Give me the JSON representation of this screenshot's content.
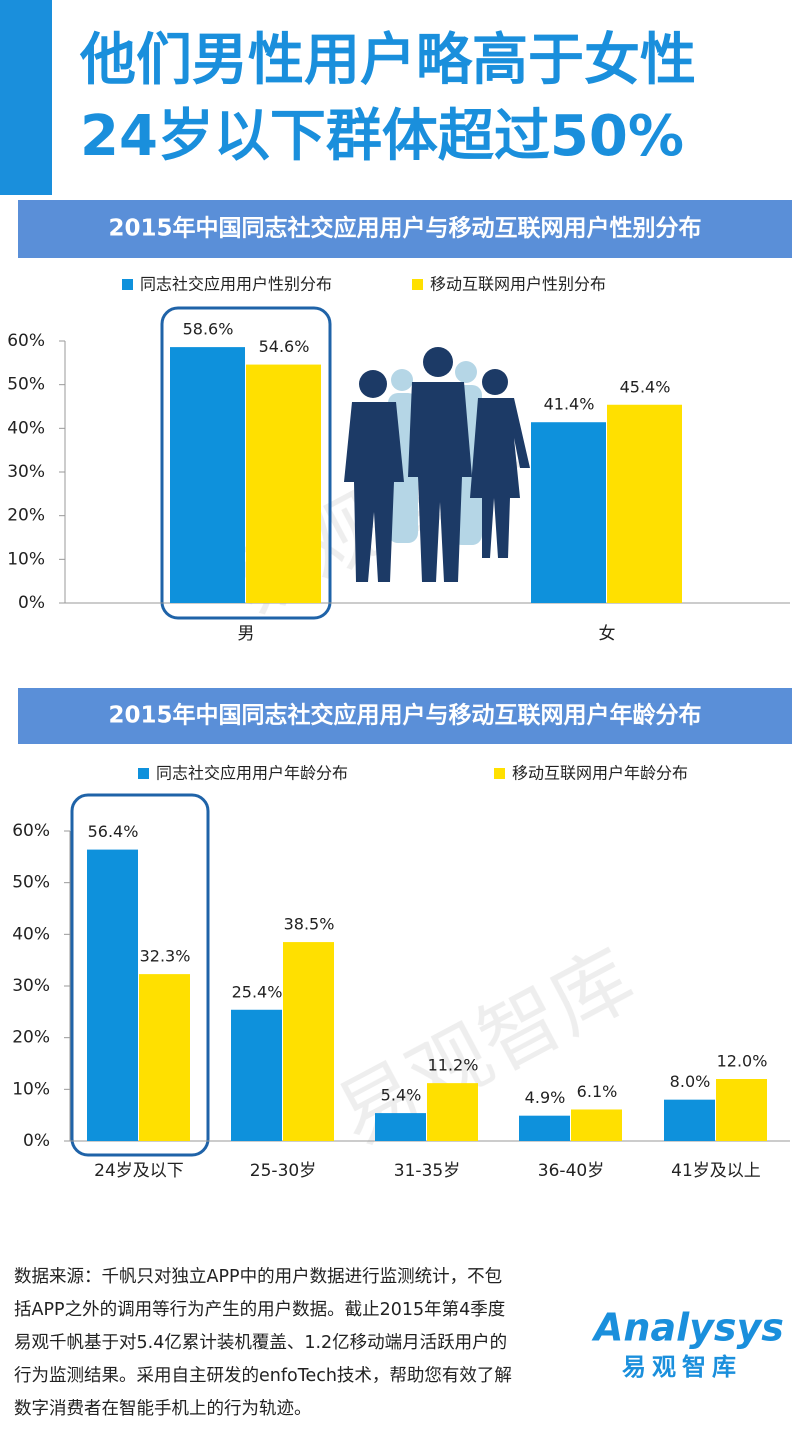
{
  "header": {
    "title_lines": [
      "他们男性用户略高于女性",
      "24岁以下群体超过50%"
    ]
  },
  "watermark": "易观智库",
  "chart_data": [
    {
      "type": "bar",
      "title": "2015年中国同志社交应用用户与移动互联网用户性别分布",
      "categories": [
        "男",
        "女"
      ],
      "series": [
        {
          "name": "同志社交应用用户性别分布",
          "color": "#0e91dc",
          "values": [
            58.6,
            41.4
          ],
          "value_labels": [
            "58.6%",
            "41.4%"
          ]
        },
        {
          "name": "移动互联网用户性别分布",
          "color": "#ffe000",
          "values": [
            54.6,
            45.4
          ],
          "value_labels": [
            "54.6%",
            "45.4%"
          ]
        }
      ],
      "ylim": [
        0,
        60
      ],
      "yticks": [
        {
          "value": 0,
          "label": "0%"
        },
        {
          "value": 10,
          "label": "10%"
        },
        {
          "value": 20,
          "label": "20%"
        },
        {
          "value": 30,
          "label": "30%"
        },
        {
          "value": 40,
          "label": "40%"
        },
        {
          "value": 50,
          "label": "50%"
        },
        {
          "value": 60,
          "label": "60%"
        }
      ]
    },
    {
      "type": "bar",
      "title": "2015年中国同志社交应用用户与移动互联网用户年龄分布",
      "categories": [
        "24岁及以下",
        "25-30岁",
        "31-35岁",
        "36-40岁",
        "41岁及以上"
      ],
      "series": [
        {
          "name": "同志社交应用用户年龄分布",
          "color": "#0e91dc",
          "values": [
            56.4,
            25.4,
            5.4,
            4.9,
            8.0
          ],
          "value_labels": [
            "56.4%",
            "25.4%",
            "5.4%",
            "4.9%",
            "8.0%"
          ]
        },
        {
          "name": "移动互联网用户年龄分布",
          "color": "#ffe000",
          "values": [
            32.3,
            38.5,
            11.2,
            6.1,
            12.0
          ],
          "value_labels": [
            "32.3%",
            "38.5%",
            "11.2%",
            "6.1%",
            "12.0%"
          ]
        }
      ],
      "ylim": [
        0,
        60
      ],
      "yticks": [
        {
          "value": 0,
          "label": "0%"
        },
        {
          "value": 10,
          "label": "10%"
        },
        {
          "value": 20,
          "label": "20%"
        },
        {
          "value": 30,
          "label": "30%"
        },
        {
          "value": 40,
          "label": "40%"
        },
        {
          "value": 50,
          "label": "50%"
        },
        {
          "value": 60,
          "label": "60%"
        }
      ]
    }
  ],
  "footer": {
    "lines": [
      "数据来源：千帆只对独立APP中的用户数据进行监测统计，不包",
      "括APP之外的调用等行为产生的用户数据。截止2015年第4季度",
      "易观千帆基于对5.4亿累计装机覆盖、1.2亿移动端月活跃用户的",
      "行为监测结果。采用自主研发的enfoTech技术，帮助您有效了解",
      "数字消费者在智能手机上的行为轨迹。"
    ]
  },
  "logo": {
    "name": "Analysys",
    "subtitle": "易观智库"
  }
}
